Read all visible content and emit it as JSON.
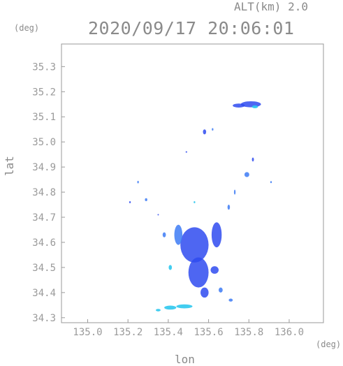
{
  "header": {
    "altitude_label": "ALT(km) 2.0",
    "datetime": "2020/09/17 20:06:01"
  },
  "chart_data": {
    "type": "scatter",
    "title": "2020/09/17 20:06:01",
    "xlabel": "lon",
    "ylabel": "lat",
    "x_unit": "(deg)",
    "y_unit": "(deg)",
    "xlim": [
      134.87,
      136.17
    ],
    "ylim": [
      34.28,
      35.39
    ],
    "x_ticks": [
      "135.0",
      "135.2",
      "135.4",
      "135.6",
      "135.8",
      "136.0"
    ],
    "y_ticks": [
      "34.3",
      "34.4",
      "34.5",
      "34.6",
      "34.7",
      "34.8",
      "34.9",
      "35.0",
      "35.1",
      "35.2",
      "35.3"
    ],
    "grid": false,
    "colors": {
      "frame": "#9a9a9a",
      "strong": "#2f4bf0",
      "medium": "#3d7bf5",
      "weak": "#2ec8ee"
    },
    "echoes": [
      {
        "lon": 135.81,
        "lat": 35.15,
        "rx": 0.05,
        "ry": 0.012,
        "level": "strong"
      },
      {
        "lon": 135.75,
        "lat": 35.145,
        "rx": 0.03,
        "ry": 0.008,
        "level": "strong"
      },
      {
        "lon": 135.83,
        "lat": 35.14,
        "rx": 0.015,
        "ry": 0.006,
        "level": "weak"
      },
      {
        "lon": 135.58,
        "lat": 35.04,
        "rx": 0.008,
        "ry": 0.01,
        "level": "strong"
      },
      {
        "lon": 135.62,
        "lat": 35.05,
        "rx": 0.004,
        "ry": 0.005,
        "level": "medium"
      },
      {
        "lon": 135.79,
        "lat": 34.87,
        "rx": 0.012,
        "ry": 0.01,
        "level": "medium"
      },
      {
        "lon": 135.82,
        "lat": 34.93,
        "rx": 0.005,
        "ry": 0.008,
        "level": "strong"
      },
      {
        "lon": 135.25,
        "lat": 34.84,
        "rx": 0.004,
        "ry": 0.005,
        "level": "medium"
      },
      {
        "lon": 135.29,
        "lat": 34.77,
        "rx": 0.006,
        "ry": 0.006,
        "level": "medium"
      },
      {
        "lon": 135.21,
        "lat": 34.76,
        "rx": 0.004,
        "ry": 0.004,
        "level": "strong"
      },
      {
        "lon": 135.53,
        "lat": 34.59,
        "rx": 0.07,
        "ry": 0.07,
        "level": "strong"
      },
      {
        "lon": 135.55,
        "lat": 34.48,
        "rx": 0.05,
        "ry": 0.06,
        "level": "strong"
      },
      {
        "lon": 135.45,
        "lat": 34.63,
        "rx": 0.02,
        "ry": 0.04,
        "level": "medium"
      },
      {
        "lon": 135.64,
        "lat": 34.63,
        "rx": 0.025,
        "ry": 0.05,
        "level": "strong"
      },
      {
        "lon": 135.41,
        "lat": 34.5,
        "rx": 0.008,
        "ry": 0.01,
        "level": "weak"
      },
      {
        "lon": 135.38,
        "lat": 34.63,
        "rx": 0.008,
        "ry": 0.01,
        "level": "medium"
      },
      {
        "lon": 135.63,
        "lat": 34.49,
        "rx": 0.02,
        "ry": 0.015,
        "level": "strong"
      },
      {
        "lon": 135.66,
        "lat": 34.41,
        "rx": 0.01,
        "ry": 0.01,
        "level": "medium"
      },
      {
        "lon": 135.58,
        "lat": 34.4,
        "rx": 0.02,
        "ry": 0.02,
        "level": "strong"
      },
      {
        "lon": 135.71,
        "lat": 34.37,
        "rx": 0.01,
        "ry": 0.006,
        "level": "medium"
      },
      {
        "lon": 135.41,
        "lat": 34.34,
        "rx": 0.03,
        "ry": 0.008,
        "level": "weak"
      },
      {
        "lon": 135.48,
        "lat": 34.345,
        "rx": 0.04,
        "ry": 0.008,
        "level": "weak"
      },
      {
        "lon": 135.35,
        "lat": 34.33,
        "rx": 0.012,
        "ry": 0.005,
        "level": "weak"
      },
      {
        "lon": 135.7,
        "lat": 34.74,
        "rx": 0.006,
        "ry": 0.01,
        "level": "medium"
      },
      {
        "lon": 135.73,
        "lat": 34.8,
        "rx": 0.004,
        "ry": 0.01,
        "level": "medium"
      },
      {
        "lon": 135.91,
        "lat": 34.84,
        "rx": 0.004,
        "ry": 0.004,
        "level": "medium"
      },
      {
        "lon": 135.49,
        "lat": 34.96,
        "rx": 0.004,
        "ry": 0.003,
        "level": "strong"
      },
      {
        "lon": 135.53,
        "lat": 34.76,
        "rx": 0.004,
        "ry": 0.004,
        "level": "weak"
      },
      {
        "lon": 135.35,
        "lat": 34.71,
        "rx": 0.003,
        "ry": 0.003,
        "level": "strong"
      }
    ]
  }
}
